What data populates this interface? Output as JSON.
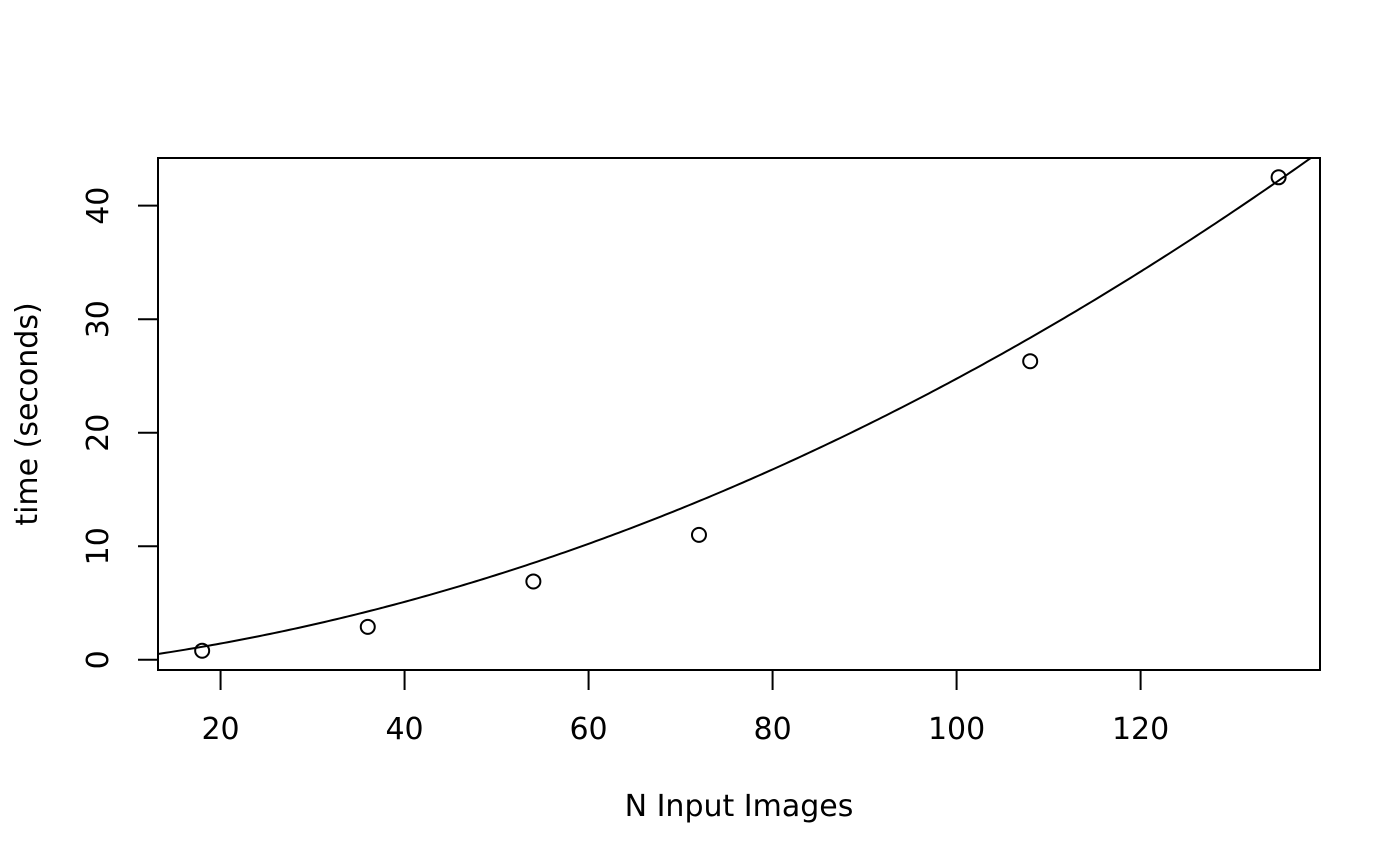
{
  "chart_data": {
    "type": "scatter",
    "title": "",
    "xlabel": "N Input Images",
    "ylabel": "time (seconds)",
    "xlim": [
      13.2,
      139.5
    ],
    "ylim": [
      -0.9,
      44.2
    ],
    "x_ticks": [
      20,
      40,
      60,
      80,
      100,
      120
    ],
    "y_ticks": [
      0,
      10,
      20,
      30,
      40
    ],
    "grid": false,
    "legend": "none",
    "points": {
      "x": [
        18,
        36,
        54,
        72,
        108,
        135
      ],
      "y": [
        0.8,
        2.9,
        6.9,
        11.0,
        26.3,
        42.5
      ]
    },
    "fit_curve": {
      "kind": "quadratic",
      "coefficients": [
        0.0018,
        0.0756,
        -0.8
      ]
    },
    "colors": {
      "points": "#000000",
      "curve": "#000000",
      "axes": "#000000"
    }
  }
}
